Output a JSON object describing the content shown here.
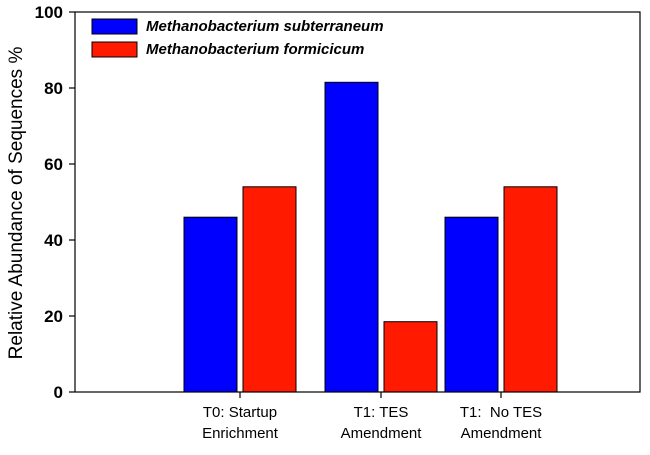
{
  "chart_data": {
    "type": "bar",
    "title": "",
    "xlabel": "",
    "ylabel": "Relative Abundance of Sequences %",
    "ylim": [
      0,
      100
    ],
    "yticks": [
      0,
      20,
      40,
      60,
      80,
      100
    ],
    "categories": [
      [
        "T0: Startup",
        "Enrichment"
      ],
      [
        "T1: TES",
        "Amendment"
      ],
      [
        "T1:  No TES",
        "Amendment"
      ]
    ],
    "series": [
      {
        "name": "Methanobacterium subterraneum",
        "color": "#0000ff",
        "values": [
          46,
          81.5,
          46
        ]
      },
      {
        "name": "Methanobacterium formicicum",
        "color": "#ff1a00",
        "values": [
          54,
          18.5,
          54
        ]
      }
    ],
    "legend_position": "top-left",
    "grid": false
  }
}
